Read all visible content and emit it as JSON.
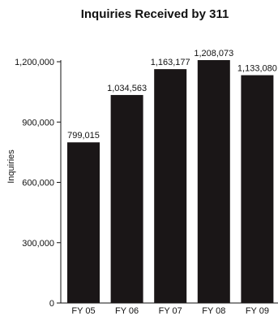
{
  "chart_data": {
    "type": "bar",
    "title": "Inquiries Received by 311",
    "xlabel": "",
    "ylabel": "Inquiries",
    "categories": [
      "FY 05",
      "FY 06",
      "FY 07",
      "FY 08",
      "FY 09"
    ],
    "values": [
      799015,
      1034563,
      1163177,
      1208073,
      1133080
    ],
    "data_labels": [
      "799,015",
      "1,034,563",
      "1,163,177",
      "1,208,073",
      "1,133,080"
    ],
    "ylim": [
      0,
      1200000
    ],
    "yticks": [
      0,
      300000,
      600000,
      900000,
      1200000
    ],
    "ytick_labels": [
      "0",
      "300,000",
      "600,000",
      "900,000",
      "1,200,000"
    ],
    "grid": false,
    "legend": "none",
    "colors": {
      "bar": "#1a1617",
      "axis": "#111111",
      "text": "#111111",
      "background": "#ffffff"
    }
  }
}
